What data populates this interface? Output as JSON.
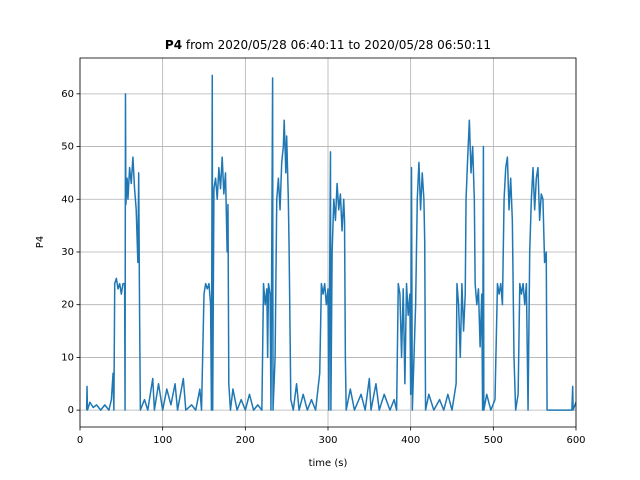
{
  "chart_data": {
    "type": "line",
    "title_parts": [
      "P4",
      "from 2020/05/28 06:40:11 to 2020/05/28 06:50:11"
    ],
    "xlabel": "time (s)",
    "ylabel": "P4",
    "color": "#1f77b4",
    "grid": true,
    "xlim": [
      0,
      600
    ],
    "xticks": [
      0,
      100,
      200,
      300,
      400,
      500,
      600
    ],
    "ylim": [
      -3.2,
      66.8
    ],
    "yticks": [
      0,
      10,
      20,
      30,
      40,
      50,
      60
    ],
    "x": [
      8,
      8.5,
      9,
      12,
      16,
      20,
      25,
      30,
      35,
      38,
      40,
      41,
      42,
      44,
      46,
      48,
      50,
      52,
      54,
      54.5,
      55,
      55.5,
      57,
      58,
      60,
      62,
      64,
      66,
      68,
      70,
      71,
      72,
      73,
      78,
      82,
      88,
      90,
      95,
      100,
      105,
      110,
      115,
      118,
      125,
      128,
      135,
      140,
      145,
      147,
      150,
      152,
      154,
      156,
      158,
      159,
      160,
      160.5,
      162,
      164,
      166,
      168,
      170,
      172,
      174,
      176,
      178,
      179,
      180,
      182,
      185,
      190,
      195,
      200,
      205,
      210,
      215,
      220,
      222,
      224,
      226,
      227,
      228,
      230,
      231,
      233,
      233.5,
      236,
      238,
      240,
      242,
      244,
      246,
      247,
      249,
      250,
      252,
      253,
      255,
      258,
      262,
      265,
      270,
      275,
      280,
      285,
      290,
      292,
      294,
      296,
      298,
      300,
      301,
      303,
      303.5,
      305,
      307,
      309,
      311,
      313,
      315,
      317,
      319,
      320,
      321,
      322,
      327,
      332,
      340,
      345,
      350,
      352,
      358,
      362,
      368,
      375,
      380,
      383,
      385,
      387,
      389,
      391,
      393,
      395,
      397,
      399,
      400,
      401,
      402,
      406,
      408,
      410,
      412,
      414,
      416,
      417,
      418,
      422,
      428,
      435,
      440,
      445,
      450,
      455,
      456,
      458,
      460,
      462,
      464,
      466,
      467,
      469,
      471,
      473,
      475,
      477,
      478,
      480,
      482,
      484,
      486,
      487,
      488,
      488.5,
      492,
      497,
      502,
      505,
      507,
      509,
      511,
      513,
      515,
      517,
      519,
      521,
      523,
      525,
      527,
      530,
      532,
      534,
      536,
      538,
      540,
      542,
      544,
      546,
      548,
      550,
      552,
      554,
      556,
      558,
      560,
      562,
      564,
      565,
      570,
      580,
      590,
      595,
      596,
      596.5,
      600
    ],
    "values": [
      0,
      4.5,
      0,
      1.5,
      0.5,
      1,
      0,
      1,
      0,
      2,
      7,
      0,
      24,
      25,
      23,
      24,
      22,
      24,
      24,
      0,
      60,
      39,
      44,
      40,
      46,
      43,
      48,
      42,
      38,
      28,
      45,
      20,
      0,
      2,
      0,
      6,
      0,
      5,
      0,
      4,
      1,
      5,
      0,
      6,
      0,
      1,
      0,
      4,
      0,
      22,
      24,
      23,
      24,
      20,
      0,
      63.5,
      0,
      42,
      44,
      40,
      46,
      42,
      48,
      41,
      45,
      30,
      39,
      5,
      0,
      4,
      0,
      2,
      0,
      3,
      0,
      1,
      0,
      24,
      20,
      23,
      10,
      24,
      22,
      0,
      63,
      0,
      10,
      40,
      44,
      38,
      47,
      50,
      55,
      45,
      52,
      40,
      30,
      2,
      0,
      5,
      0,
      3,
      0,
      2,
      0,
      7,
      24,
      22,
      24,
      20,
      23,
      0,
      49,
      0,
      30,
      40,
      36,
      43,
      38,
      41,
      34,
      40,
      36,
      10,
      0,
      4,
      0,
      3,
      0,
      6,
      0,
      5,
      0,
      3,
      0,
      2,
      0,
      24,
      22,
      10,
      23,
      5,
      24,
      18,
      22,
      3,
      46,
      0,
      20,
      40,
      47,
      38,
      45,
      40,
      32,
      0,
      3,
      0,
      2,
      0,
      3,
      0,
      5,
      24,
      20,
      10,
      24,
      15,
      22,
      40,
      48,
      55,
      45,
      50,
      40,
      24,
      20,
      23,
      12,
      22,
      0,
      50,
      0,
      3,
      0,
      2,
      24,
      22,
      24,
      20,
      40,
      46,
      48,
      38,
      44,
      36,
      10,
      0,
      3,
      24,
      22,
      24,
      20,
      24,
      0,
      30,
      40,
      46,
      38,
      44,
      46,
      36,
      41,
      40,
      28,
      30,
      0,
      0,
      0,
      0,
      0,
      4.5,
      0,
      1.5
    ]
  }
}
